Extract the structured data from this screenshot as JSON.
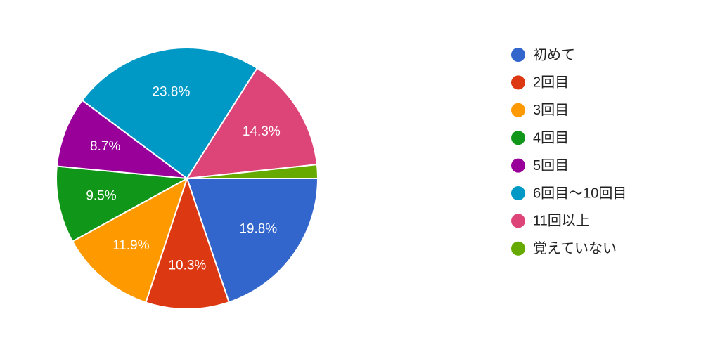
{
  "chart_data": {
    "type": "pie",
    "categories": [
      "初めて",
      "2回目",
      "3回目",
      "4回目",
      "5回目",
      "6回目〜10回目",
      "11回以上",
      "覚えていない"
    ],
    "values": [
      19.8,
      10.3,
      11.9,
      9.5,
      8.7,
      23.8,
      14.3,
      1.7
    ],
    "value_labels": [
      "19.8%",
      "10.3%",
      "11.9%",
      "9.5%",
      "8.7%",
      "23.8%",
      "14.3%",
      null
    ],
    "colors": [
      "#3366cc",
      "#dc3912",
      "#ff9900",
      "#109618",
      "#990099",
      "#0099c6",
      "#dd4477",
      "#66aa00"
    ],
    "legend": "right"
  }
}
